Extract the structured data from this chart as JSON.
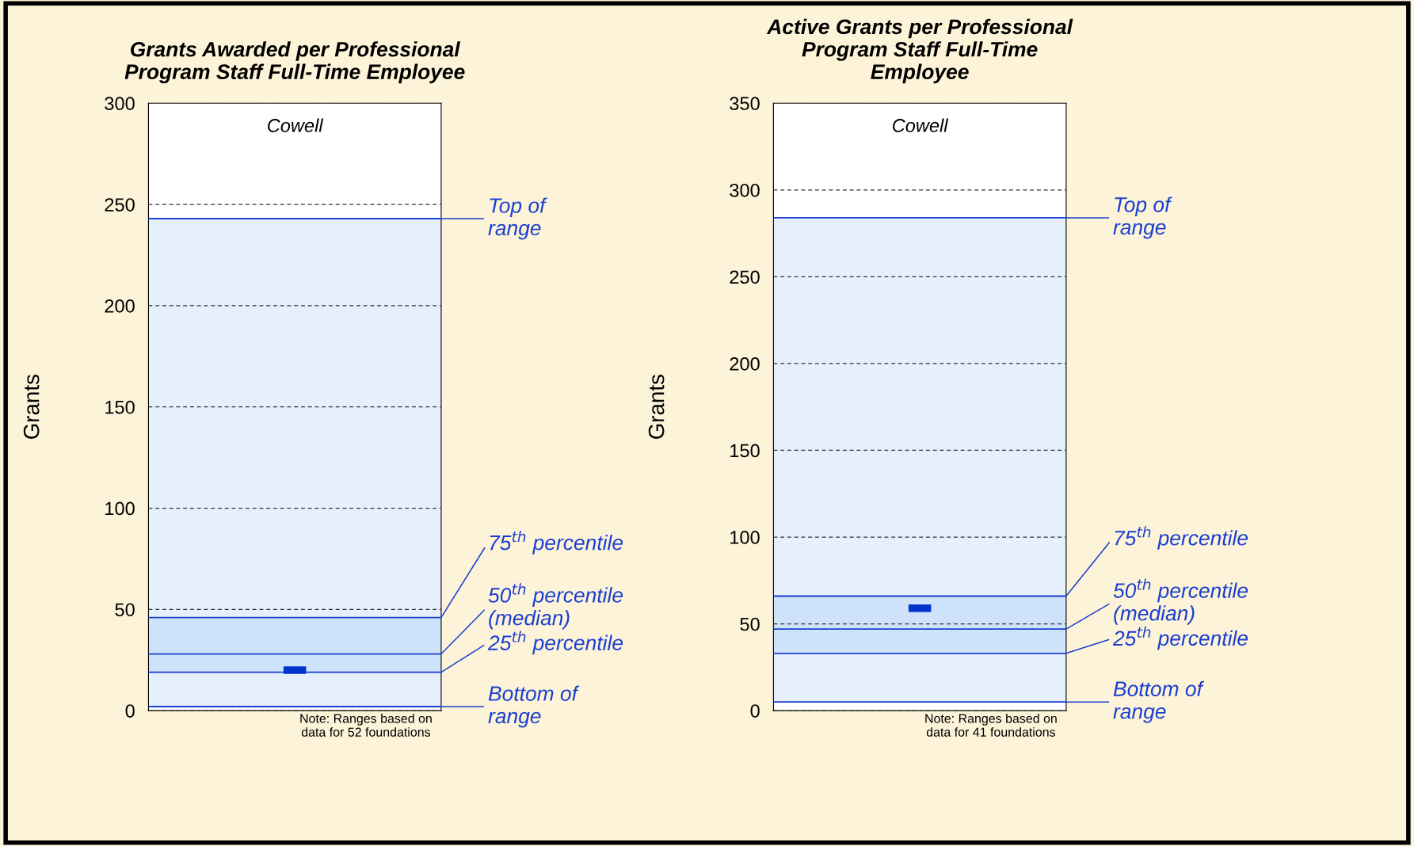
{
  "chart_data": [
    {
      "type": "scatter",
      "title": "Grants Awarded per Professional\nProgram Staff Full-Time Employee",
      "ylabel": "Grants",
      "categories": [
        "Cowell"
      ],
      "values": [
        20
      ],
      "color": "#0033cc",
      "bands": [
        {
          "axis": "y",
          "from": 2,
          "to": 243,
          "color": "#e6f0fd"
        },
        {
          "axis": "y",
          "from": 19,
          "to": 46,
          "color": "#cfe2fb"
        }
      ],
      "ref_lines": [
        {
          "axis": "y",
          "value": 243,
          "label": "Top of\nrange",
          "color": "#1a3fd0"
        },
        {
          "axis": "y",
          "value": 46,
          "label": "75$^{th}$ percentile",
          "color": "#1a3fd0"
        },
        {
          "axis": "y",
          "value": 28,
          "label": "50$^{th}$ percentile\n(median)",
          "color": "#1a3fd0"
        },
        {
          "axis": "y",
          "value": 19,
          "label": "25$^{th}$ percentile",
          "color": "#1a3fd0"
        },
        {
          "axis": "y",
          "value": 2,
          "label": "Bottom of\nrange",
          "color": "#1a3fd0"
        }
      ],
      "ylim": [
        0,
        300
      ],
      "yticks": [
        0,
        50,
        100,
        150,
        200,
        250,
        300
      ],
      "grid": "y",
      "annotations": [
        "Note: Ranges based on\ndata for 52 foundations"
      ]
    },
    {
      "type": "scatter",
      "title": "Active Grants per Professional\nProgram Staff Full-Time\nEmployee",
      "ylabel": "Grants",
      "categories": [
        "Cowell"
      ],
      "values": [
        59
      ],
      "color": "#0033cc",
      "bands": [
        {
          "axis": "y",
          "from": 5,
          "to": 284,
          "color": "#e6f0fd"
        },
        {
          "axis": "y",
          "from": 33,
          "to": 66,
          "color": "#cfe2fb"
        }
      ],
      "ref_lines": [
        {
          "axis": "y",
          "value": 284,
          "label": "Top of\nrange",
          "color": "#1a3fd0"
        },
        {
          "axis": "y",
          "value": 66,
          "label": "75$^{th}$ percentile",
          "color": "#1a3fd0"
        },
        {
          "axis": "y",
          "value": 47,
          "label": "50$^{th}$ percentile\n(median)",
          "color": "#1a3fd0"
        },
        {
          "axis": "y",
          "value": 33,
          "label": "25$^{th}$ percentile",
          "color": "#1a3fd0"
        },
        {
          "axis": "y",
          "value": 5,
          "label": "Bottom of\nrange",
          "color": "#1a3fd0"
        }
      ],
      "ylim": [
        0,
        350
      ],
      "yticks": [
        0,
        50,
        100,
        150,
        200,
        250,
        300,
        350
      ],
      "grid": "y",
      "annotations": [
        "Note: Ranges based on\ndata for 41 foundations"
      ]
    }
  ]
}
